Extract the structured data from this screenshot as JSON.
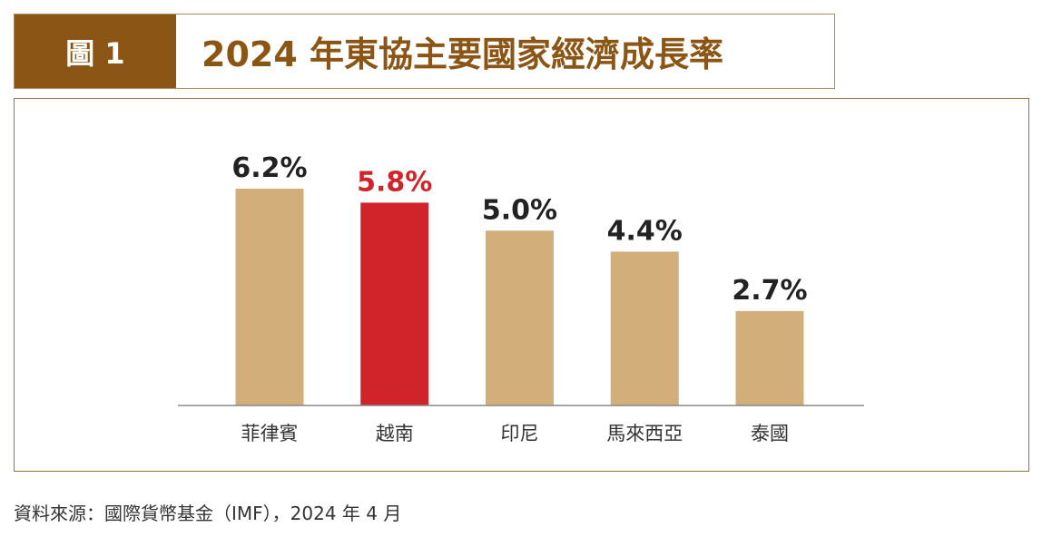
{
  "header": {
    "figure_label": "圖 1",
    "title": "2024 年東協主要國家經濟成長率"
  },
  "chart_data": {
    "type": "bar",
    "title": "2024 年東協主要國家經濟成長率",
    "categories": [
      "菲律賓",
      "越南",
      "印尼",
      "馬來西亞",
      "泰國"
    ],
    "values": [
      6.2,
      5.8,
      5.0,
      4.4,
      2.7
    ],
    "data_labels": [
      "6.2%",
      "5.8%",
      "5.0%",
      "4.4%",
      "2.7%"
    ],
    "highlight_index": 1,
    "colors": {
      "default": "#d2ae7b",
      "highlight": "#d0232a",
      "label": "#222222",
      "axis": "#888888"
    },
    "xlabel": "",
    "ylabel": "",
    "ylim": [
      0,
      6.2
    ],
    "grid": false
  },
  "footer": {
    "source": "資料來源：國際貨幣基金（IMF），2024 年 4 月"
  }
}
